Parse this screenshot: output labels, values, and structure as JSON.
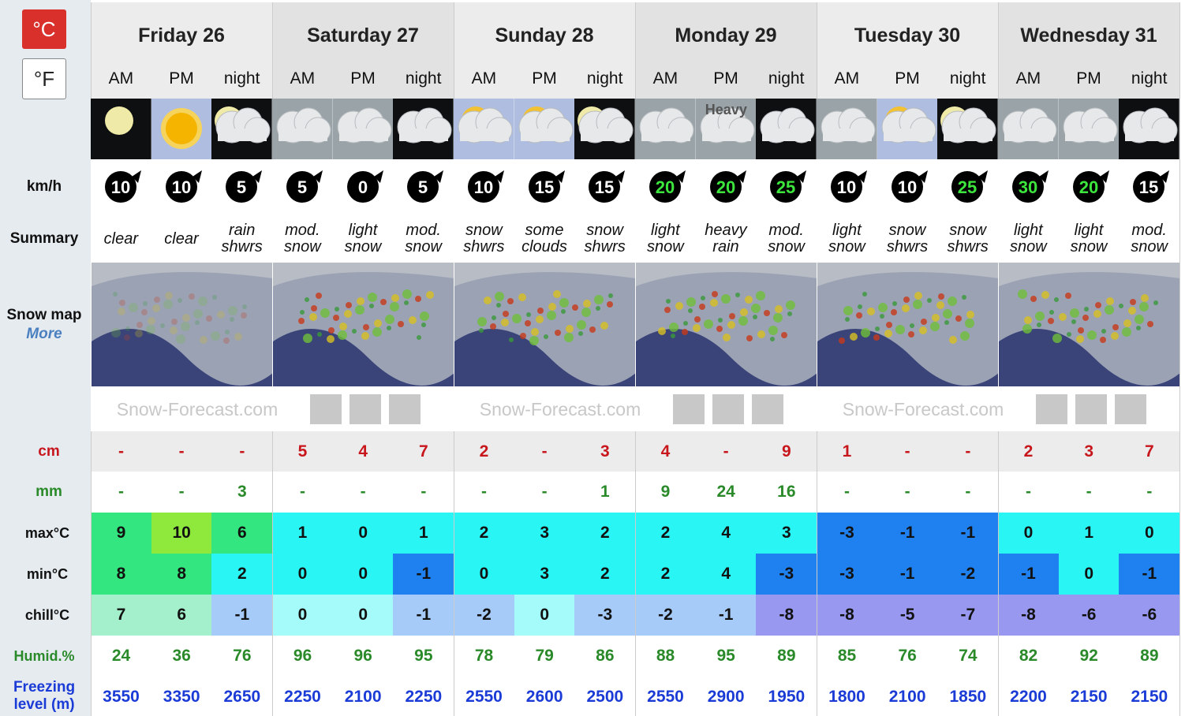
{
  "units": {
    "celsius": "°C",
    "fahrenheit": "°F"
  },
  "labels": {
    "wind": "km/h",
    "summary": "Summary",
    "snow_map": "Snow map",
    "more": "More",
    "snow": "cm",
    "rain": "mm",
    "max": "max°C",
    "min": "min°C",
    "chill": "chill°C",
    "humidity": "Humid.%",
    "freezing": "Freezing level (m)"
  },
  "days": [
    "Friday 26",
    "Saturday 27",
    "Sunday 28",
    "Monday 29",
    "Tuesday 30",
    "Wednesday 31"
  ],
  "periods": [
    "AM",
    "PM",
    "night"
  ],
  "icon_text": "Heavy",
  "watermark": "Snow-Forecast.com",
  "wind": [
    10,
    10,
    5,
    5,
    0,
    5,
    10,
    15,
    15,
    20,
    20,
    25,
    10,
    10,
    25,
    30,
    20,
    15
  ],
  "summary": [
    "clear",
    "clear",
    "rain shwrs",
    "mod. snow",
    "light snow",
    "mod. snow",
    "snow shwrs",
    "some clouds",
    "snow shwrs",
    "light snow",
    "heavy rain",
    "mod. snow",
    "light snow",
    "snow shwrs",
    "snow shwrs",
    "light snow",
    "light snow",
    "mod. snow"
  ],
  "snow_cm": [
    "-",
    "-",
    "-",
    5,
    4,
    7,
    2,
    "-",
    3,
    4,
    "-",
    9,
    1,
    "-",
    "-",
    2,
    3,
    7
  ],
  "rain_mm": [
    "-",
    "-",
    3,
    "-",
    "-",
    "-",
    "-",
    "-",
    1,
    9,
    24,
    16,
    "-",
    "-",
    "-",
    "-",
    "-",
    "-"
  ],
  "max": [
    9,
    10,
    6,
    1,
    0,
    1,
    2,
    3,
    2,
    2,
    4,
    3,
    -3,
    -1,
    -1,
    0,
    1,
    0
  ],
  "min": [
    8,
    8,
    2,
    0,
    0,
    -1,
    0,
    3,
    2,
    2,
    4,
    -3,
    -3,
    -1,
    -2,
    -1,
    0,
    -1
  ],
  "chill": [
    7,
    6,
    -1,
    0,
    0,
    -1,
    -2,
    0,
    -3,
    -2,
    -1,
    -8,
    -8,
    -5,
    -7,
    -8,
    -6,
    -6
  ],
  "humidity": [
    24,
    36,
    76,
    96,
    96,
    95,
    78,
    79,
    86,
    88,
    95,
    89,
    85,
    76,
    74,
    82,
    92,
    89
  ],
  "freezing": [
    3550,
    3350,
    2650,
    2250,
    2100,
    2250,
    2550,
    2600,
    2500,
    2550,
    2900,
    1950,
    1800,
    2100,
    1850,
    2200,
    2150,
    2150
  ]
}
